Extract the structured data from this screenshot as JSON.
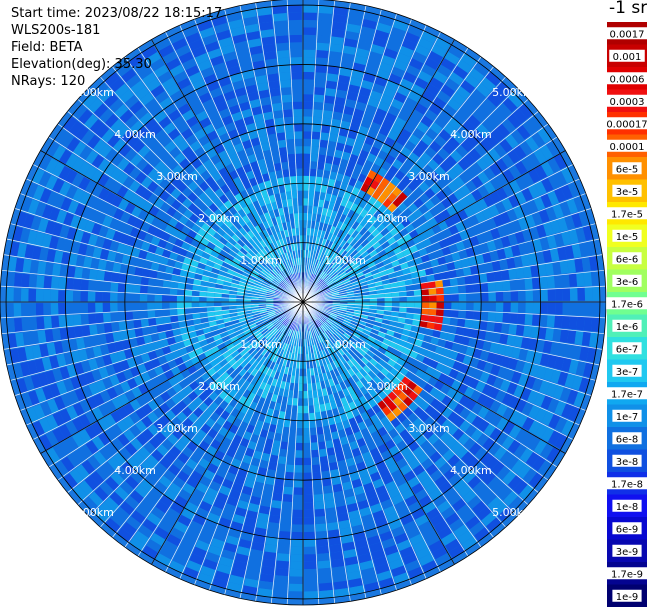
{
  "header": {
    "start_time": "Start time: 2023/08/22 18:15:17",
    "instrument": "WLS200s-181",
    "field": "Field: BETA",
    "elevation": "Elevation(deg): 35.30",
    "nrays": "NRays: 120"
  },
  "chart_data": {
    "type": "heatmap",
    "subtype": "polar-ppi",
    "field": "BETA",
    "n_rays": 120,
    "max_range_km": 5.0,
    "range_ring_labels": [
      "1.00km",
      "2.00km",
      "3.00km",
      "4.00km",
      "5.00km"
    ],
    "range_ring_km": [
      1,
      2,
      3,
      4,
      5
    ],
    "colorbar": {
      "title": "-1 sr",
      "labels": [
        "0.0017",
        "0.001",
        "0.0006",
        "0.0003",
        "0.00017",
        "0.0001",
        "6e-5",
        "3e-5",
        "1.7e-5",
        "1e-5",
        "6e-6",
        "3e-6",
        "1.7e-6",
        "1e-6",
        "6e-7",
        "3e-7",
        "1.7e-7",
        "1e-7",
        "6e-8",
        "3e-8",
        "1.7e-8",
        "1e-8",
        "6e-9",
        "3e-9",
        "1.7e-9",
        "1e-9"
      ],
      "colors": [
        "#b00000",
        "#c80000",
        "#e00000",
        "#f01010",
        "#ff3000",
        "#ff6000",
        "#ff9000",
        "#ffc000",
        "#ffe800",
        "#f0ff20",
        "#c8ff40",
        "#a0ff60",
        "#70ff90",
        "#50f0b8",
        "#30e0e0",
        "#20c8f0",
        "#10a8f0",
        "#1090e8",
        "#1070e0",
        "#1050e0",
        "#1030e8",
        "#1010f0",
        "#0808d0",
        "#0808b0",
        "#040490",
        "#000070"
      ]
    },
    "features": [
      {
        "name": "high-backscatter-arc-ne",
        "approx_range_km": 2.3,
        "azimuth_deg_range": [
          28,
          45
        ],
        "value_range": [
          "3e-5",
          "0.0017"
        ]
      },
      {
        "name": "high-backscatter-arc-e",
        "approx_range_km": 2.2,
        "azimuth_deg_range": [
          82,
          102
        ],
        "value_range": [
          "3e-5",
          "0.0017"
        ]
      },
      {
        "name": "high-backscatter-arc-se",
        "approx_range_km": 2.3,
        "azimuth_deg_range": [
          125,
          145
        ],
        "value_range": [
          "3e-5",
          "0.0017"
        ]
      }
    ],
    "background_value_range": [
      "1e-8",
      "1.7e-7"
    ],
    "grid": true
  }
}
